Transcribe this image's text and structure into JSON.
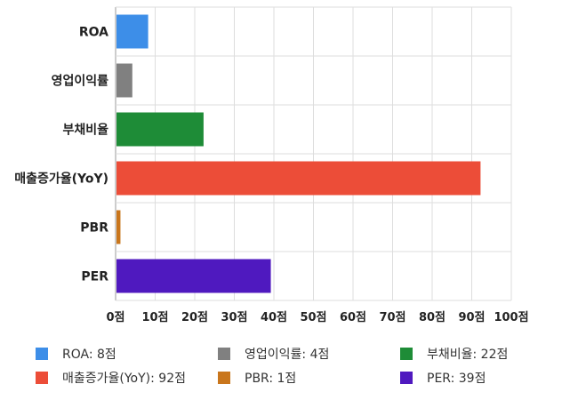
{
  "chart_data": {
    "type": "bar",
    "orientation": "horizontal",
    "categories": [
      "ROA",
      "영업이익률",
      "부채비율",
      "매출증가율(YoY)",
      "PBR",
      "PER"
    ],
    "values": [
      8,
      4,
      22,
      92,
      1,
      39
    ],
    "colors": [
      "#3d8ee8",
      "#808080",
      "#1e8c37",
      "#ec4d38",
      "#c9761c",
      "#4f19bf"
    ],
    "xlim": [
      0,
      100
    ],
    "x_ticks": [
      "0점",
      "10점",
      "20점",
      "30점",
      "40점",
      "50점",
      "60점",
      "70점",
      "80점",
      "90점",
      "100점"
    ],
    "grid": true,
    "legend_position": "bottom",
    "legend": [
      {
        "label": "ROA: 8점",
        "color": "#3d8ee8"
      },
      {
        "label": "영업이익률: 4점",
        "color": "#808080"
      },
      {
        "label": "부채비율: 22점",
        "color": "#1e8c37"
      },
      {
        "label": "매출증가율(YoY): 92점",
        "color": "#ec4d38"
      },
      {
        "label": "PBR: 1점",
        "color": "#c9761c"
      },
      {
        "label": "PER: 39점",
        "color": "#4f19bf"
      }
    ]
  }
}
